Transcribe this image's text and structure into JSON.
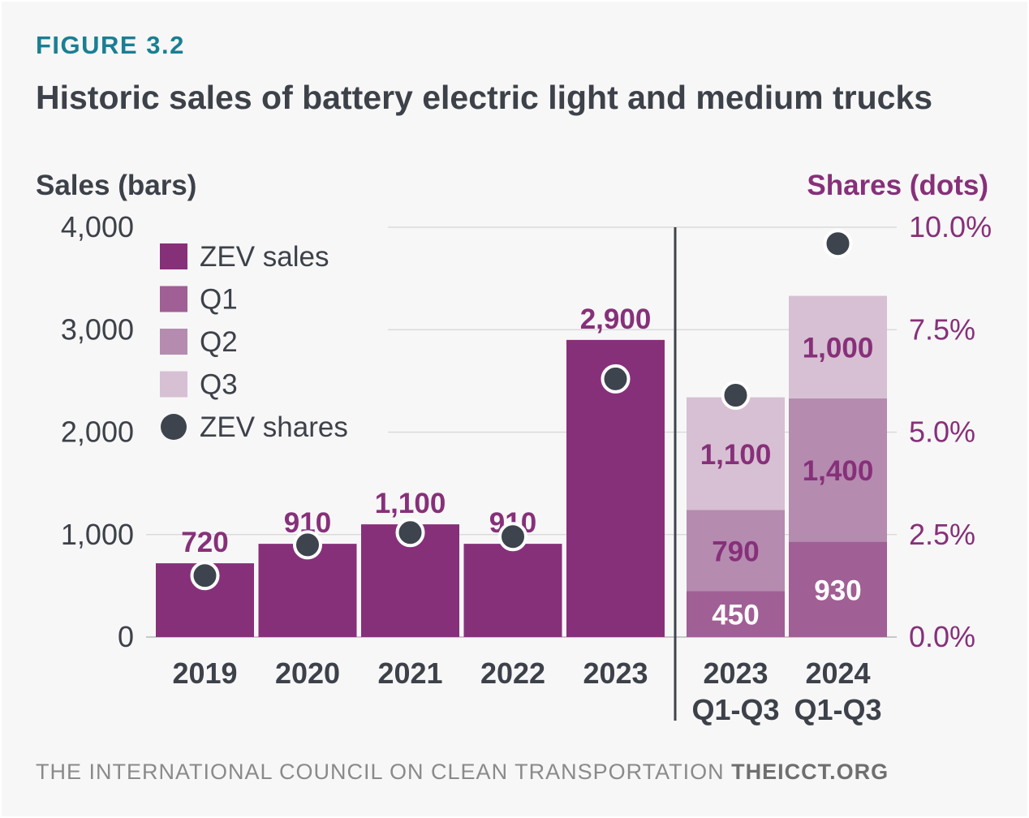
{
  "figure_label": "FIGURE 3.2",
  "title": "Historic sales of battery electric light and medium trucks",
  "footer": {
    "org": "THE INTERNATIONAL COUNCIL ON CLEAN TRANSPORTATION",
    "site": "THEICCT.ORG"
  },
  "colors": {
    "zev_sales": "#87307a",
    "q1": "#a05f95",
    "q2": "#b58bb0",
    "q3": "#d7c0d3",
    "dot": "#3e444d",
    "accent": "#1a7f93",
    "text": "#3d4149",
    "share_axis": "#87307a"
  },
  "chart_data": {
    "type": "bar",
    "ylabel": "Sales (bars)",
    "ylabel_right": "Shares (dots)",
    "ylim": [
      0,
      4000
    ],
    "ylim_right": [
      0,
      10
    ],
    "yticks": [
      "0",
      "1,000",
      "2,000",
      "3,000",
      "4,000"
    ],
    "yticks_right": [
      "0.0%",
      "2.5%",
      "5.0%",
      "7.5%",
      "10.0%"
    ],
    "grid": true,
    "legend_position": "top-left",
    "legend": [
      "ZEV sales",
      "Q1",
      "Q2",
      "Q3",
      "ZEV shares"
    ],
    "annual": {
      "categories": [
        "2019",
        "2020",
        "2021",
        "2022",
        "2023"
      ],
      "values": [
        720,
        910,
        1100,
        910,
        2900
      ],
      "labels": [
        "720",
        "910",
        "1,100",
        "910",
        "2,900"
      ],
      "shares": [
        1.5,
        2.25,
        2.55,
        2.45,
        6.3
      ]
    },
    "quarterly": {
      "categories": [
        [
          "2023",
          "Q1-Q3"
        ],
        [
          "2024",
          "Q1-Q3"
        ]
      ],
      "series": [
        {
          "name": "Q1",
          "values": [
            450,
            930
          ],
          "labels": [
            "450",
            "930"
          ]
        },
        {
          "name": "Q2",
          "values": [
            790,
            1400
          ],
          "labels": [
            "790",
            "1,400"
          ]
        },
        {
          "name": "Q3",
          "values": [
            1100,
            1000
          ],
          "labels": [
            "1,100",
            "1,000"
          ]
        }
      ],
      "shares": [
        5.9,
        9.6
      ]
    }
  }
}
